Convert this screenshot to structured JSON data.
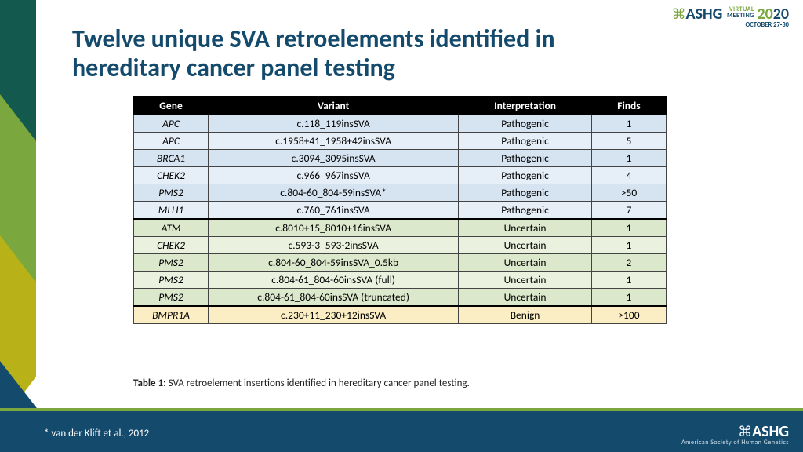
{
  "title": "Twelve unique SVA retroelements identified in hereditary cancer panel testing",
  "logo_top": {
    "brand": "ASHG",
    "event_top": "VIRTUAL",
    "event_bottom": "MEETING",
    "year": "2020",
    "dates": "OCTOBER 27-30"
  },
  "table": {
    "columns": [
      "Gene",
      "Variant",
      "Interpretation",
      "Finds"
    ],
    "col_widths": [
      "14%",
      "47%",
      "25%",
      "14%"
    ],
    "groups": [
      {
        "bg_colors": [
          "#d6e3f0",
          "#e6eef7"
        ],
        "rows": [
          [
            "APC",
            "c.118_119insSVA",
            "Pathogenic",
            "1"
          ],
          [
            "APC",
            "c.1958+41_1958+42insSVA",
            "Pathogenic",
            "5"
          ],
          [
            "BRCA1",
            "c.3094_3095insSVA",
            "Pathogenic",
            "1"
          ],
          [
            "CHEK2",
            "c.966_967insSVA",
            "Pathogenic",
            "4"
          ],
          [
            "PMS2",
            "c.804-60_804-59insSVA*",
            "Pathogenic",
            ">50"
          ],
          [
            "MLH1",
            "c.760_761insSVA",
            "Pathogenic",
            "7"
          ]
        ]
      },
      {
        "bg_colors": [
          "#dbe8cc",
          "#eaf1df"
        ],
        "rows": [
          [
            "ATM",
            "c.8010+15_8010+16insSVA",
            "Uncertain",
            "1"
          ],
          [
            "CHEK2",
            "c.593-3_593-2insSVA",
            "Uncertain",
            "1"
          ],
          [
            "PMS2",
            "c.804-60_804-59insSVA_0.5kb",
            "Uncertain",
            "2"
          ],
          [
            "PMS2",
            "c.804-61_804-60insSVA (full)",
            "Uncertain",
            "1"
          ],
          [
            "PMS2",
            "c.804-61_804-60insSVA (truncated)",
            "Uncertain",
            "1"
          ]
        ]
      },
      {
        "bg_colors": [
          "#fceec4"
        ],
        "rows": [
          [
            "BMPR1A",
            "c.230+11_230+12insSVA",
            "Benign",
            ">100"
          ]
        ]
      }
    ]
  },
  "caption_label": "Table 1:",
  "caption_text": " SVA retroelement insertions identified in hereditary cancer panel testing.",
  "footnote": "* van der Klift et al., 2012",
  "footer_logo": {
    "brand": "ASHG",
    "sub": "American Society of Human Genetics"
  },
  "side_accent": {
    "colors": {
      "dark": "#13594d",
      "mid": "#7aa83e",
      "light": "#b8b218"
    }
  }
}
